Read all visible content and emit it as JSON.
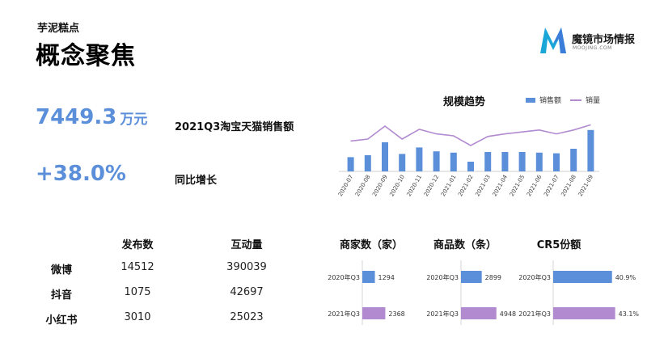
{
  "header": {
    "subtitle": "芋泥糕点",
    "title": "概念聚焦"
  },
  "logo": {
    "name": "魔镜市场情报",
    "url": "MOOJING.COM",
    "mark_colors": [
      "#1aa7d8",
      "#3b7dd8"
    ]
  },
  "kpis": [
    {
      "value": "7449.3",
      "unit": "万元",
      "label": "2021Q3淘宝天猫销售额"
    },
    {
      "value": "+38.0%",
      "unit": "",
      "label": "同比增长"
    }
  ],
  "social_table": {
    "headers": [
      "",
      "发布数",
      "互动量"
    ],
    "rows": [
      {
        "platform": "微博",
        "posts": "14512",
        "interactions": "390039"
      },
      {
        "platform": "抖音",
        "posts": "1075",
        "interactions": "42697"
      },
      {
        "platform": "小红书",
        "posts": "3010",
        "interactions": "25023"
      }
    ]
  },
  "colors": {
    "bar": "#5b8fd9",
    "line": "#b28ad0",
    "kpi": "#5b8fd9",
    "bar_2021": "#b28ad0"
  },
  "chart_data": [
    {
      "type": "bar",
      "title": "规模趋势",
      "categories": [
        "2020-07",
        "2020-08",
        "2020-09",
        "2020-10",
        "2020-11",
        "2020-12",
        "2021-01",
        "2021-02",
        "2021-03",
        "2021-04",
        "2021-05",
        "2021-06",
        "2021-07",
        "2021-08",
        "2021-09"
      ],
      "series": [
        {
          "name": "销售额",
          "type": "bar",
          "values": [
            22,
            25,
            45,
            27,
            37,
            31,
            29,
            15,
            30,
            30,
            30,
            29,
            28,
            35,
            64
          ]
        },
        {
          "name": "销量",
          "type": "line",
          "values": [
            47,
            50,
            70,
            50,
            65,
            58,
            55,
            40,
            54,
            58,
            61,
            64,
            58,
            64,
            72
          ]
        }
      ],
      "legend": "top-right",
      "ylim": [
        0,
        80
      ],
      "grid": false
    },
    {
      "type": "bar",
      "title": "商家数（家）",
      "categories": [
        "2020年Q3",
        "2021年Q3"
      ],
      "values": [
        1294,
        2368
      ],
      "data_labels": [
        "1294",
        "2368"
      ],
      "xlim": [
        0,
        5000
      ]
    },
    {
      "type": "bar",
      "title": "商品数（条）",
      "categories": [
        "2020年Q3",
        "2021年Q3"
      ],
      "values": [
        2899,
        4948
      ],
      "data_labels": [
        "2899",
        "4948"
      ],
      "xlim": [
        0,
        5200
      ]
    },
    {
      "type": "bar",
      "title": "CR5份额",
      "categories": [
        "2020年Q3",
        "2021年Q3"
      ],
      "values": [
        40.9,
        43.1
      ],
      "data_labels": [
        "40.9%",
        "43.1%"
      ],
      "xlim": [
        0,
        45
      ]
    }
  ]
}
